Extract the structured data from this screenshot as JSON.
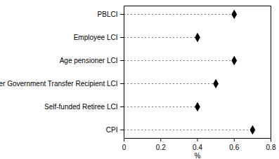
{
  "chart_data": {
    "type": "dot",
    "orientation": "horizontal",
    "categories": [
      "PBLCI",
      "Employee LCI",
      "Age pensioner LCI",
      "Other Government Transfer Recipient LCI",
      "Self-funded Retiree LCI",
      "CPI"
    ],
    "values": [
      0.6,
      0.4,
      0.6,
      0.5,
      0.4,
      0.7
    ],
    "color": "#000000",
    "marker": "diamond",
    "line_style": "dashed",
    "xlabel": "%",
    "xlim": [
      0,
      0.8
    ],
    "xticks": [
      0,
      0.2,
      0.4,
      0.6,
      0.8
    ],
    "grid": false
  }
}
